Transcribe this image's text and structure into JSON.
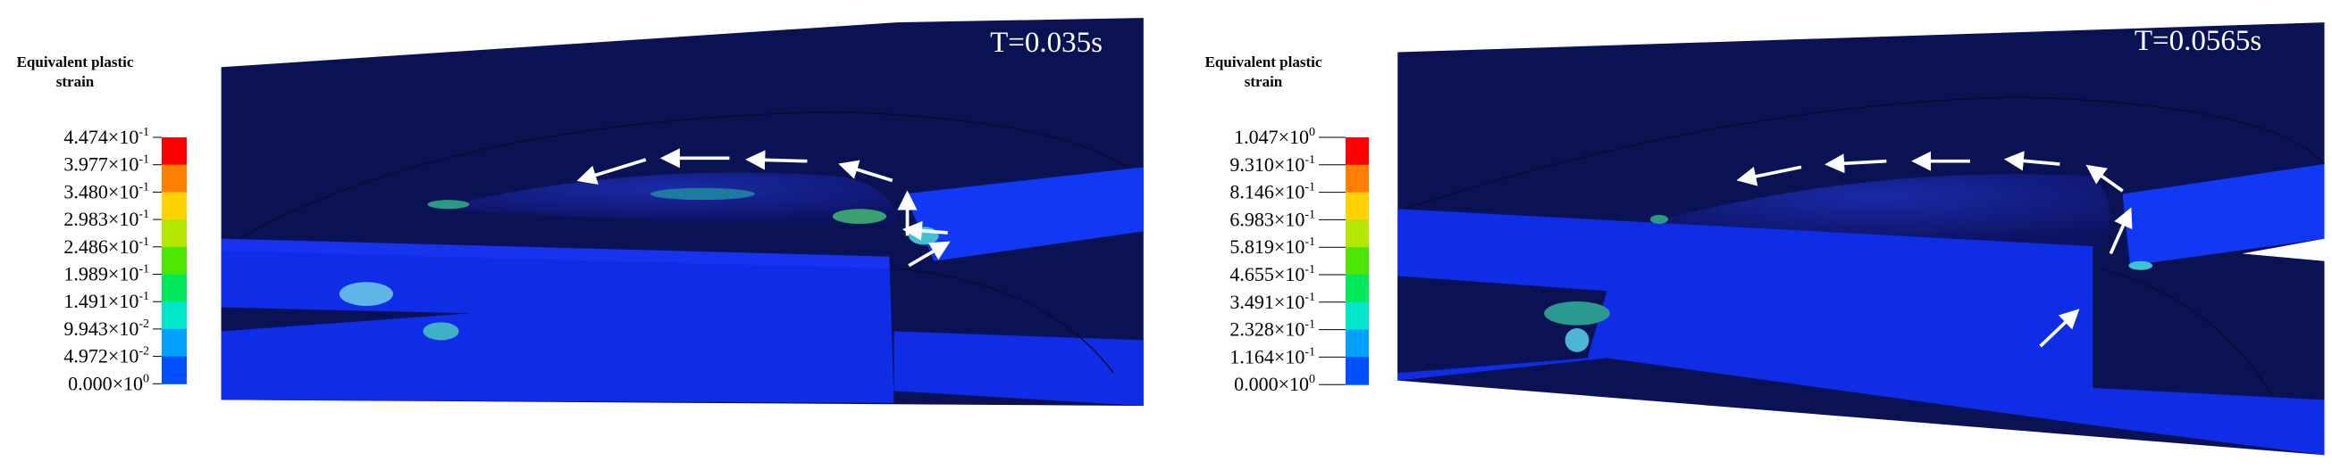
{
  "panels": [
    {
      "legend": {
        "title": [
          "Equivalent plastic",
          "strain"
        ],
        "labels": [
          {
            "mantissa": "4.474×10",
            "exponent": "-1"
          },
          {
            "mantissa": "3.977×10",
            "exponent": "-1"
          },
          {
            "mantissa": "3.480×10",
            "exponent": "-1"
          },
          {
            "mantissa": "2.983×10",
            "exponent": "-1"
          },
          {
            "mantissa": "2.486×10",
            "exponent": "-1"
          },
          {
            "mantissa": "1.989×10",
            "exponent": "-1"
          },
          {
            "mantissa": "1.491×10",
            "exponent": "-1"
          },
          {
            "mantissa": "9.943×10",
            "exponent": "-2"
          },
          {
            "mantissa": "4.972×10",
            "exponent": "-2"
          },
          {
            "mantissa": "0.000×10",
            "exponent": "0"
          }
        ]
      },
      "time_label": "T=0.035s"
    },
    {
      "legend": {
        "title": [
          "Equivalent plastic",
          "strain"
        ],
        "labels": [
          {
            "mantissa": "1.047×10",
            "exponent": "0"
          },
          {
            "mantissa": "9.310×10",
            "exponent": "-1"
          },
          {
            "mantissa": "8.146×10",
            "exponent": "-1"
          },
          {
            "mantissa": "6.983×10",
            "exponent": "-1"
          },
          {
            "mantissa": "5.819×10",
            "exponent": "-1"
          },
          {
            "mantissa": "4.655×10",
            "exponent": "-1"
          },
          {
            "mantissa": "3.491×10",
            "exponent": "-1"
          },
          {
            "mantissa": "2.328×10",
            "exponent": "-1"
          },
          {
            "mantissa": "1.164×10",
            "exponent": "-1"
          },
          {
            "mantissa": "0.000×10",
            "exponent": "0"
          }
        ]
      },
      "time_label": "T=0.0565s"
    }
  ]
}
